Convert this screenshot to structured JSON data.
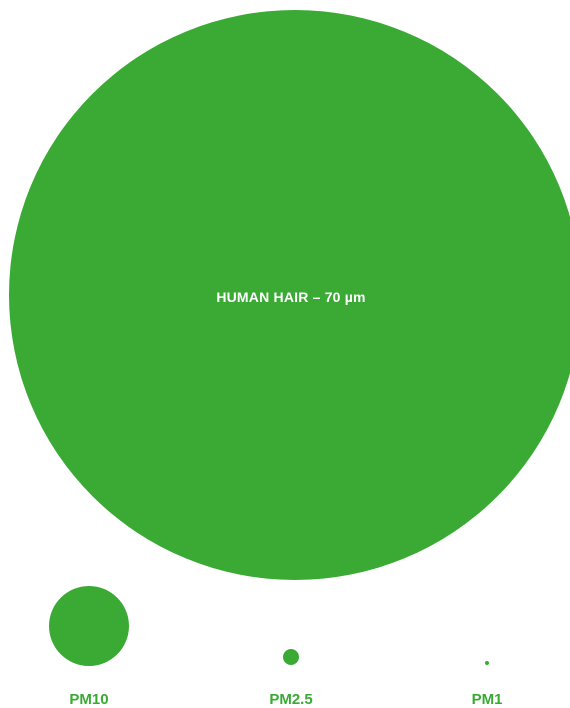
{
  "colors": {
    "particle_green": "#3aaa35",
    "label_text": "#ffffff"
  },
  "hair": {
    "label": "HUMAN HAIR – 70 µm"
  },
  "particles": [
    {
      "label": "PM10"
    },
    {
      "label": "PM2.5"
    },
    {
      "label": "PM1"
    }
  ]
}
